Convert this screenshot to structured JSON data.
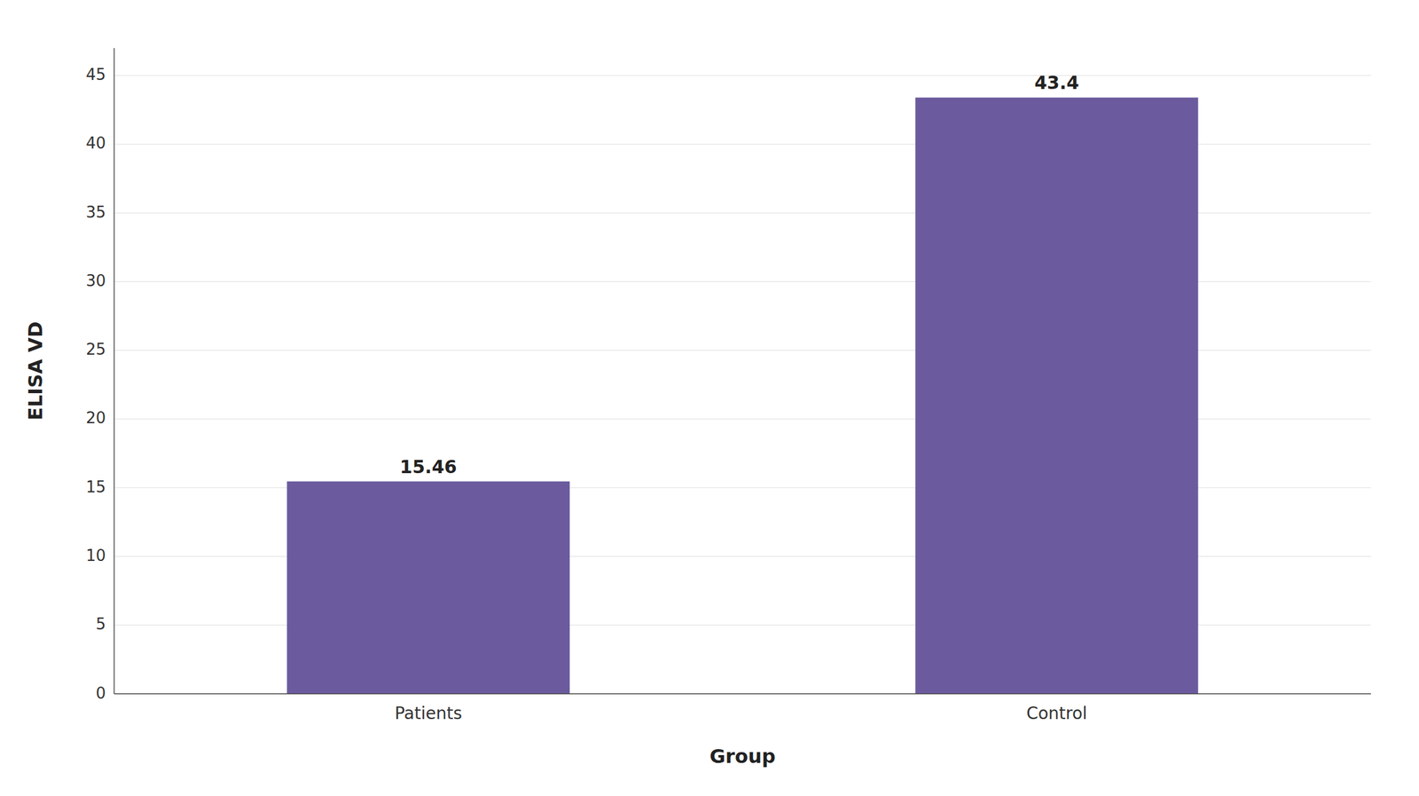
{
  "chart_data": {
    "type": "bar",
    "categories": [
      "Patients",
      "Control"
    ],
    "values": [
      15.46,
      43.4
    ],
    "color": "#6B5B9E",
    "xlabel": "Group",
    "ylabel": "ELISA VD",
    "ylim": [
      0,
      47
    ],
    "yticks": [
      0,
      5,
      10,
      15,
      20,
      25,
      30,
      35,
      40,
      45
    ],
    "grid": true,
    "data_labels": true
  }
}
